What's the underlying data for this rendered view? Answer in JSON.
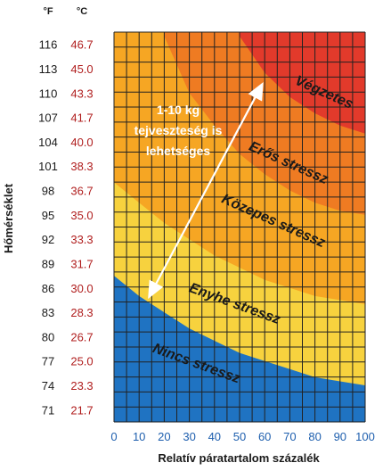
{
  "chart_data": {
    "type": "heatmap",
    "title": "",
    "xlabel": "Relatív páratartalom százalék",
    "ylabel": "Hőmérséklet",
    "x_unit_label": "",
    "y_unit_labels": {
      "fahrenheit": "°F",
      "celsius": "°C"
    },
    "x_ticks": [
      "0",
      "10",
      "20",
      "30",
      "40",
      "50",
      "60",
      "70",
      "80",
      "90",
      "100"
    ],
    "xlim": [
      0,
      100
    ],
    "ylim_f": [
      71,
      116
    ],
    "y_ticks": [
      {
        "f": "116",
        "c": "46.7"
      },
      {
        "f": "113",
        "c": "45.0"
      },
      {
        "f": "110",
        "c": "43.3"
      },
      {
        "f": "107",
        "c": "41.7"
      },
      {
        "f": "104",
        "c": "40.0"
      },
      {
        "f": "101",
        "c": "38.3"
      },
      {
        "f": "98",
        "c": "36.7"
      },
      {
        "f": "95",
        "c": "35.0"
      },
      {
        "f": "92",
        "c": "33.3"
      },
      {
        "f": "89",
        "c": "31.7"
      },
      {
        "f": "86",
        "c": "30.0"
      },
      {
        "f": "83",
        "c": "28.3"
      },
      {
        "f": "80",
        "c": "26.7"
      },
      {
        "f": "77",
        "c": "25.0"
      },
      {
        "f": "74",
        "c": "23.3"
      },
      {
        "f": "71",
        "c": "21.7"
      }
    ],
    "zones": [
      {
        "name": "Nincs stressz",
        "color": "#1f73c2",
        "boundary": [
          [
            0,
            87.5
          ],
          [
            10,
            85
          ],
          [
            20,
            83
          ],
          [
            30,
            81
          ],
          [
            40,
            79.5
          ],
          [
            50,
            78
          ],
          [
            60,
            77
          ],
          [
            70,
            76
          ],
          [
            80,
            75
          ],
          [
            90,
            74.5
          ],
          [
            100,
            74
          ]
        ]
      },
      {
        "name": "Enyhe stressz",
        "color": "#f7d23e",
        "boundary": [
          [
            0,
            99
          ],
          [
            10,
            96.5
          ],
          [
            20,
            94
          ],
          [
            30,
            92
          ],
          [
            40,
            90
          ],
          [
            50,
            88.5
          ],
          [
            60,
            87
          ],
          [
            70,
            86
          ],
          [
            80,
            85
          ],
          [
            90,
            84.5
          ],
          [
            100,
            84
          ]
        ]
      },
      {
        "name": "Közepes stressz",
        "color": "#f6a623",
        "boundary": [
          [
            20,
            117
          ],
          [
            30,
            110
          ],
          [
            40,
            106
          ],
          [
            50,
            102.5
          ],
          [
            60,
            100
          ],
          [
            70,
            98
          ],
          [
            80,
            96.5
          ],
          [
            90,
            95.5
          ],
          [
            100,
            95
          ]
        ]
      },
      {
        "name": "Erős stressz",
        "color": "#ef7b22",
        "boundary": [
          [
            50,
            117
          ],
          [
            60,
            112.5
          ],
          [
            70,
            109.5
          ],
          [
            80,
            107.5
          ],
          [
            90,
            106
          ],
          [
            100,
            105
          ]
        ]
      },
      {
        "name": "Végzetes",
        "color": "#e23a2b",
        "boundary": []
      }
    ],
    "annotation": {
      "lines": [
        "1-10 kg",
        "tejveszteség is",
        "lehetséges"
      ],
      "arrow_from": [
        15,
        85.5
      ],
      "arrow_to": [
        58,
        110.5
      ]
    },
    "grid": true,
    "legend": "none"
  }
}
